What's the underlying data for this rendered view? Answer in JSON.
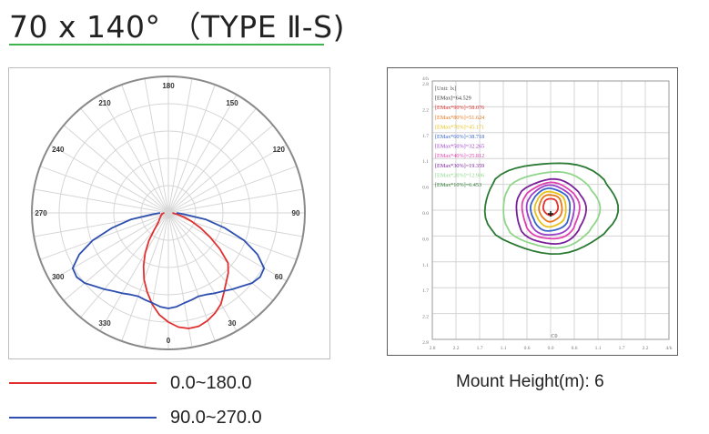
{
  "title": "70 x 140°  （TYPE Ⅱ-S)",
  "mount_height_label": "Mount Height(m):",
  "mount_height_value": "6",
  "legend": [
    {
      "label": "0.0~180.0",
      "color": "#e03030"
    },
    {
      "label": "90.0~270.0",
      "color": "#2e4fb0"
    }
  ],
  "chart_data": [
    {
      "type": "polar",
      "angle_labels": [
        {
          "angle": 180,
          "text": "180"
        },
        {
          "angle": 150,
          "text": "150"
        },
        {
          "angle": 120,
          "text": "120"
        },
        {
          "angle": 90,
          "text": "90"
        },
        {
          "angle": 60,
          "text": "60"
        },
        {
          "angle": 30,
          "text": "30"
        },
        {
          "angle": 0,
          "text": "0"
        },
        {
          "angle": 330,
          "text": "330"
        },
        {
          "angle": 300,
          "text": "300"
        },
        {
          "angle": 270,
          "text": "270"
        },
        {
          "angle": 240,
          "text": "240"
        },
        {
          "angle": 210,
          "text": "210"
        }
      ],
      "radial_rings": 5,
      "series": [
        {
          "name": "0.0~180.0",
          "color": "#e03030",
          "angles": [
            -90,
            -85,
            -80,
            -75,
            -70,
            -65,
            -60,
            -55,
            -50,
            -45,
            -40,
            -35,
            -30,
            -25,
            -20,
            -15,
            -10,
            -5,
            0,
            5,
            10,
            15,
            20,
            25,
            30,
            35,
            40,
            45,
            50,
            55,
            60,
            65,
            70,
            75,
            80,
            85,
            90
          ],
          "values": [
            0.03,
            0.04,
            0.05,
            0.05,
            0.06,
            0.06,
            0.07,
            0.08,
            0.09,
            0.11,
            0.16,
            0.25,
            0.34,
            0.43,
            0.52,
            0.6,
            0.68,
            0.75,
            0.8,
            0.84,
            0.86,
            0.86,
            0.84,
            0.81,
            0.77,
            0.71,
            0.66,
            0.62,
            0.57,
            0.46,
            0.35,
            0.26,
            0.18,
            0.12,
            0.07,
            0.04,
            0.03
          ]
        },
        {
          "name": "90.0~270.0",
          "color": "#2e4fb0",
          "angles": [
            -90,
            -85,
            -80,
            -75,
            -70,
            -65,
            -60,
            -55,
            -50,
            -45,
            -40,
            -35,
            -30,
            -25,
            -20,
            -15,
            -10,
            -5,
            0,
            5,
            10,
            15,
            20,
            25,
            30,
            35,
            40,
            45,
            50,
            55,
            60,
            65,
            70,
            75,
            80,
            85,
            90
          ],
          "values": [
            0.06,
            0.12,
            0.28,
            0.43,
            0.59,
            0.72,
            0.81,
            0.82,
            0.8,
            0.76,
            0.73,
            0.7,
            0.68,
            0.66,
            0.65,
            0.66,
            0.67,
            0.69,
            0.7,
            0.69,
            0.67,
            0.66,
            0.65,
            0.66,
            0.68,
            0.7,
            0.73,
            0.76,
            0.8,
            0.82,
            0.81,
            0.72,
            0.59,
            0.43,
            0.28,
            0.12,
            0.06
          ]
        }
      ]
    },
    {
      "type": "contour",
      "header_lines": [
        {
          "text": "[Unit: lx]",
          "color": "#555555"
        },
        {
          "text": "[EMax]=64.529",
          "color": "#333333"
        },
        {
          "text": "[EMax*90%]=58.076",
          "color": "#e03030"
        },
        {
          "text": "[EMax*80%]=51.624",
          "color": "#e8761a"
        },
        {
          "text": "[EMax*70%]=45.171",
          "color": "#e8c21a"
        },
        {
          "text": "[EMax*60%]=38.718",
          "color": "#3a63c8"
        },
        {
          "text": "[EMax*50%]=32.265",
          "color": "#9b40c8"
        },
        {
          "text": "[EMax*40%]=25.812",
          "color": "#e040b0"
        },
        {
          "text": "[EMax*30%]=19.359",
          "color": "#7a1f9a"
        },
        {
          "text": "[EMax*20%]=12.906",
          "color": "#8fd68a"
        },
        {
          "text": "[EMax*10%]=6.453",
          "color": "#2a7a33"
        }
      ],
      "x_ticks": [
        "2.8",
        "2.2",
        "1.7",
        "1.1",
        "0.6",
        "0.0",
        "0.6",
        "1.1",
        "1.7",
        "2.2",
        "4/h"
      ],
      "y_ticks": [
        "4/h",
        "2.8",
        "2.2",
        "1.7",
        "1.1",
        "0.6",
        "0.0",
        "0.6",
        "1.1",
        "1.7",
        "2.2",
        "2.8"
      ],
      "xlabel": "C0",
      "contours": [
        {
          "level": 0.9,
          "color": "#e03030",
          "cx": 0.0,
          "cy": 0.08,
          "rx": 0.18,
          "ry": 0.18
        },
        {
          "level": 0.8,
          "color": "#e8761a",
          "cx": 0.0,
          "cy": 0.06,
          "rx": 0.28,
          "ry": 0.29
        },
        {
          "level": 0.7,
          "color": "#e8c21a",
          "cx": 0.0,
          "cy": 0.04,
          "rx": 0.38,
          "ry": 0.38
        },
        {
          "level": 0.6,
          "color": "#3a63c8",
          "cx": 0.0,
          "cy": 0.03,
          "rx": 0.48,
          "ry": 0.46
        },
        {
          "level": 0.5,
          "color": "#9b40c8",
          "cx": 0.0,
          "cy": 0.02,
          "rx": 0.58,
          "ry": 0.54
        },
        {
          "level": 0.4,
          "color": "#e040b0",
          "cx": 0.0,
          "cy": 0.01,
          "rx": 0.7,
          "ry": 0.61
        },
        {
          "level": 0.3,
          "color": "#7a1f9a",
          "cx": 0.0,
          "cy": 0.0,
          "rx": 0.85,
          "ry": 0.7
        },
        {
          "level": 0.2,
          "color": "#8fd68a",
          "cx": 0.0,
          "cy": 0.05,
          "rx": 1.18,
          "ry": 0.82
        },
        {
          "level": 0.1,
          "color": "#2a7a33",
          "cx": 0.0,
          "cy": 0.1,
          "rx": 1.62,
          "ry": 0.98
        }
      ],
      "xlim": [
        -2.8,
        2.8
      ],
      "ylim": [
        -2.8,
        2.8
      ]
    }
  ]
}
